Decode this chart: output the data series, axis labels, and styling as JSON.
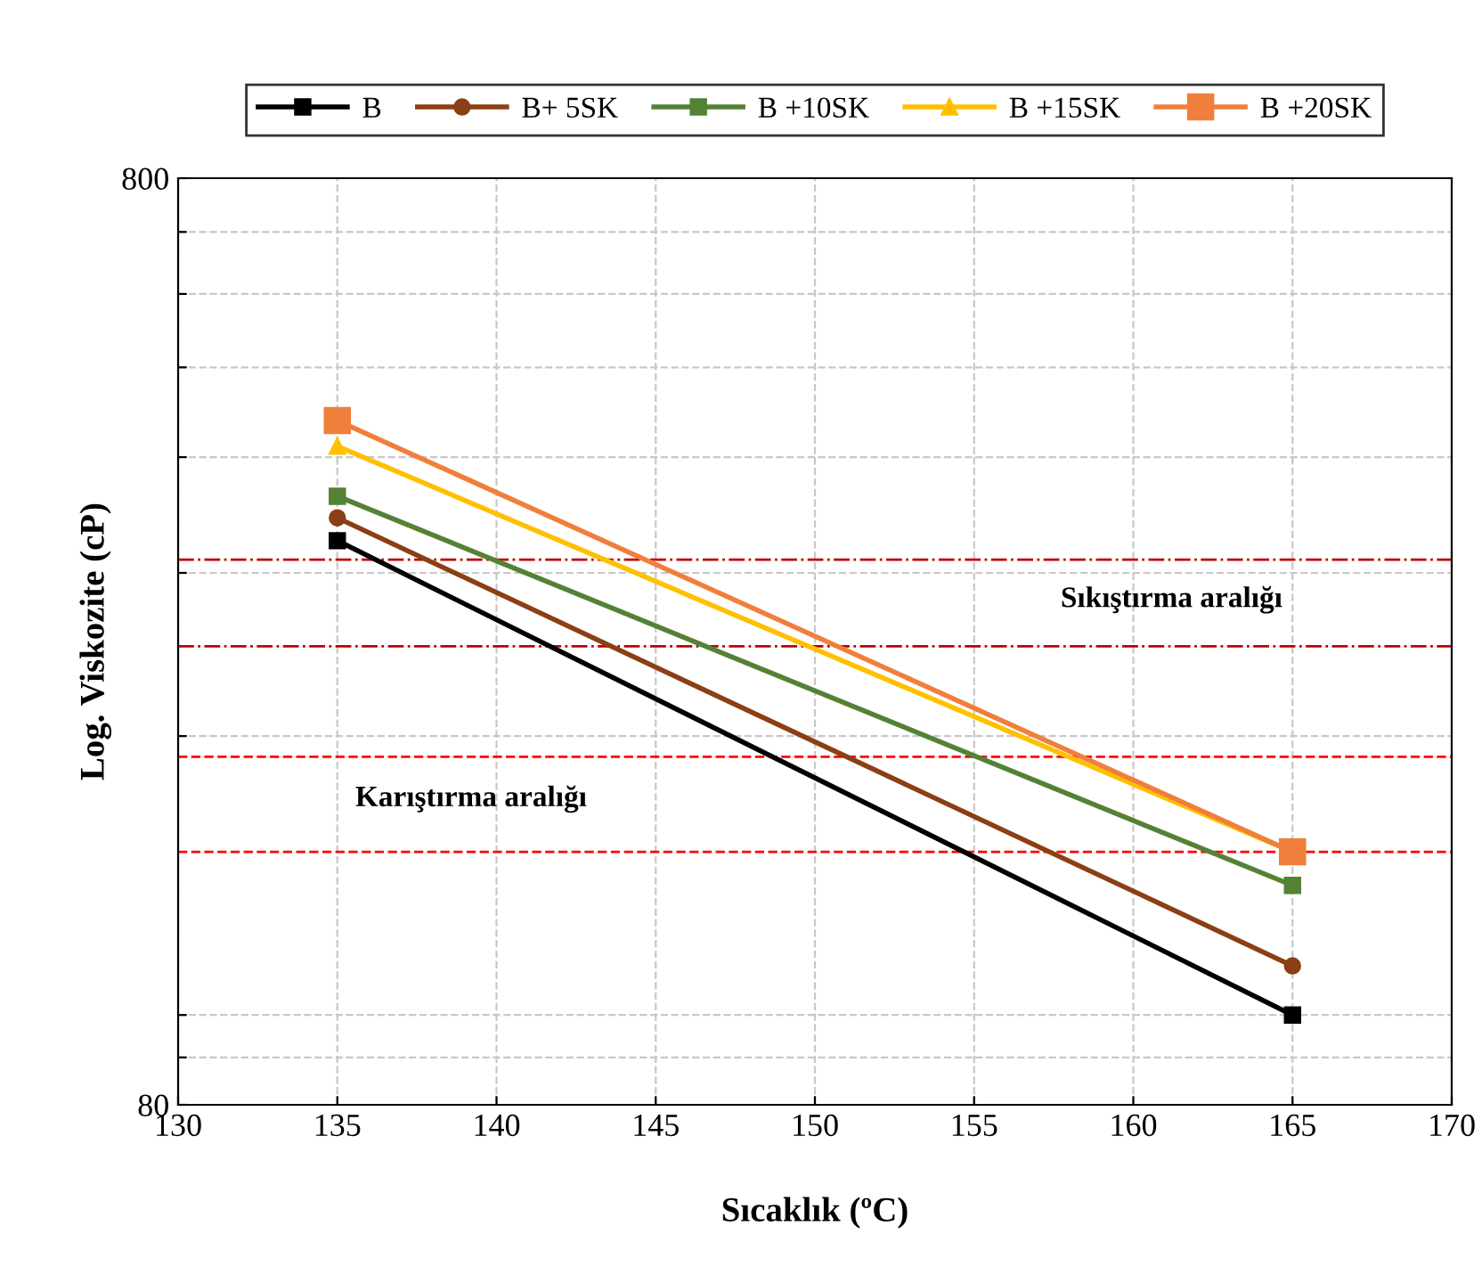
{
  "chart_data": {
    "type": "line",
    "xlabel": "Sıcaklık (ºC)",
    "ylabel": "Log. Viskozite (cP)",
    "log": "y",
    "x": [
      135,
      165
    ],
    "xlim": [
      130,
      170
    ],
    "xticks": [
      130,
      135,
      140,
      145,
      150,
      155,
      160,
      165,
      170
    ],
    "ylim": [
      80,
      800
    ],
    "yticks": [
      80,
      {
        "value": 90,
        "label": null
      },
      {
        "value": 100,
        "label": null
      },
      {
        "value": 200,
        "label": null
      },
      {
        "value": 300,
        "label": null
      },
      {
        "value": 400,
        "label": null
      },
      {
        "value": 500,
        "label": null
      },
      {
        "value": 600,
        "label": null
      },
      {
        "value": 700,
        "label": null
      },
      800
    ],
    "grid": true,
    "legend": "top",
    "series": [
      {
        "name": "B",
        "color": "#000000",
        "marker": "square",
        "values": [
          325,
          100
        ]
      },
      {
        "name": "B+ 5SK",
        "color": "#8b3f14",
        "marker": "circle",
        "values": [
          344,
          113
        ]
      },
      {
        "name": "B +10SK",
        "color": "#548235",
        "marker": "square",
        "values": [
          363,
          138
        ]
      },
      {
        "name": "B +15SK",
        "color": "#ffc000",
        "marker": "triangle",
        "values": [
          411,
          150
        ]
      },
      {
        "name": "B +20SK",
        "color": "#f07f3c",
        "marker": "square",
        "values": [
          438,
          150
        ]
      }
    ],
    "ref_lines": [
      {
        "axis": "y",
        "value": 310,
        "color": "#c00000",
        "line_style": "dashdot"
      },
      {
        "axis": "y",
        "value": 250,
        "color": "#c00000",
        "line_style": "dashdot"
      },
      {
        "axis": "y",
        "value": 190,
        "color": "#ff0000",
        "line_style": "dashed"
      },
      {
        "axis": "y",
        "value": 150,
        "color": "#ff0000",
        "line_style": "dashed"
      }
    ],
    "annotations": [
      "Sıkıştırma aralığı",
      "Karıştırma aralığı"
    ]
  }
}
